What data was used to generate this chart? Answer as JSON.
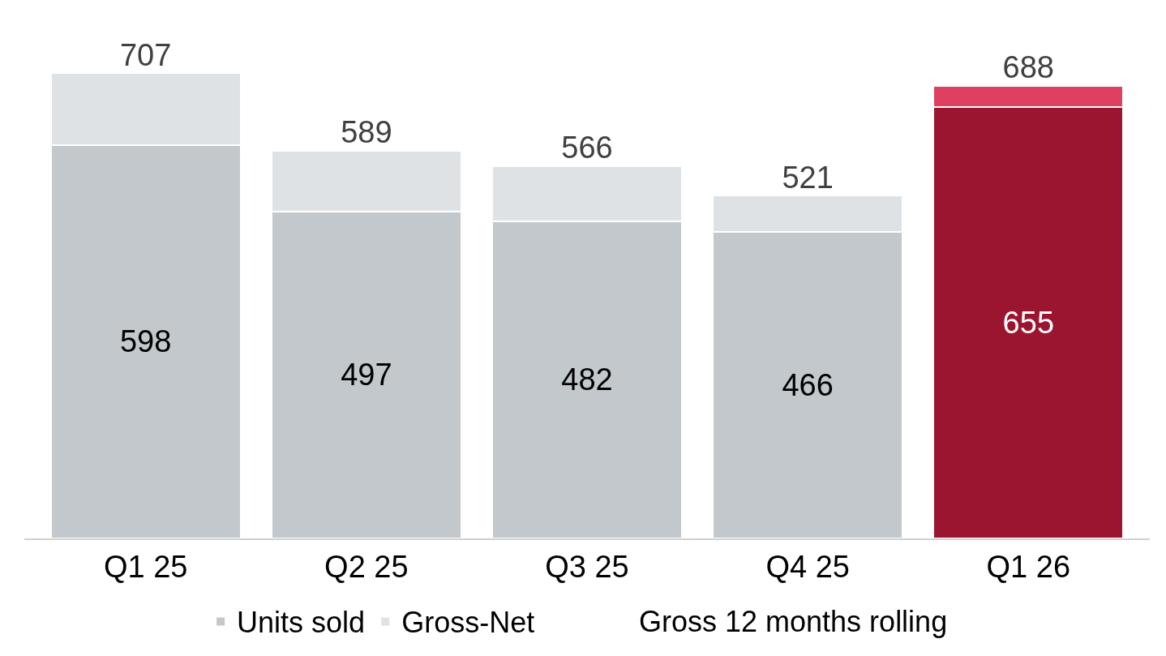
{
  "chart_data": {
    "type": "bar",
    "stacked": true,
    "categories": [
      "Q1 25",
      "Q2 25",
      "Q3 25",
      "Q4 25",
      "Q1 26"
    ],
    "series": [
      {
        "name": "Units sold",
        "colors": [
          "#c3c8cc",
          "#c3c8cc",
          "#c3c8cc",
          "#c3c8cc",
          "#9b1430"
        ],
        "values": [
          598,
          497,
          482,
          466,
          655
        ],
        "value_labels": [
          "598",
          "497",
          "482",
          "466",
          "655"
        ]
      },
      {
        "name": "Gross-Net",
        "colors": [
          "#dfe2e5",
          "#dfe2e5",
          "#dfe2e5",
          "#dfe2e5",
          "#e0405f"
        ],
        "values": [
          109,
          92,
          84,
          55,
          33
        ]
      }
    ],
    "totals": [
      "707",
      "589",
      "566",
      "521",
      "688"
    ],
    "annotations": [
      "Gross 12 months rolling"
    ],
    "legend": "bottom"
  }
}
